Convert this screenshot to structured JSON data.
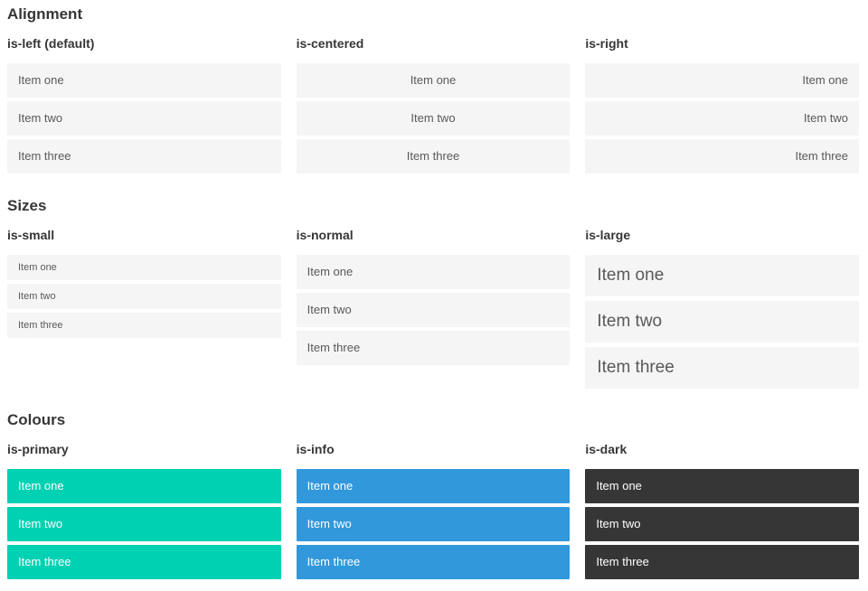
{
  "colors": {
    "primary": "#00d1b2",
    "info": "#3298dc",
    "dark": "#363636",
    "item_bg": "#f5f5f5",
    "item_text": "#595959",
    "heading_text": "#363636",
    "colour_item_text": "#ffffff"
  },
  "sections": [
    {
      "title": "Alignment",
      "groups": [
        {
          "heading": "is-left (default)",
          "items": [
            "Item one",
            "Item two",
            "Item three"
          ]
        },
        {
          "heading": "is-centered",
          "items": [
            "Item one",
            "Item two",
            "Item three"
          ]
        },
        {
          "heading": "is-right",
          "items": [
            "Item one",
            "Item two",
            "Item three"
          ]
        }
      ]
    },
    {
      "title": "Sizes",
      "groups": [
        {
          "heading": "is-small",
          "items": [
            "Item one",
            "Item two",
            "Item three"
          ]
        },
        {
          "heading": "is-normal",
          "items": [
            "Item one",
            "Item two",
            "Item three"
          ]
        },
        {
          "heading": "is-large",
          "items": [
            "Item one",
            "Item two",
            "Item three"
          ]
        }
      ]
    },
    {
      "title": "Colours",
      "groups": [
        {
          "heading": "is-primary",
          "items": [
            "Item one",
            "Item two",
            "Item three"
          ]
        },
        {
          "heading": "is-info",
          "items": [
            "Item one",
            "Item two",
            "Item three"
          ]
        },
        {
          "heading": "is-dark",
          "items": [
            "Item one",
            "Item two",
            "Item three"
          ]
        }
      ]
    }
  ]
}
